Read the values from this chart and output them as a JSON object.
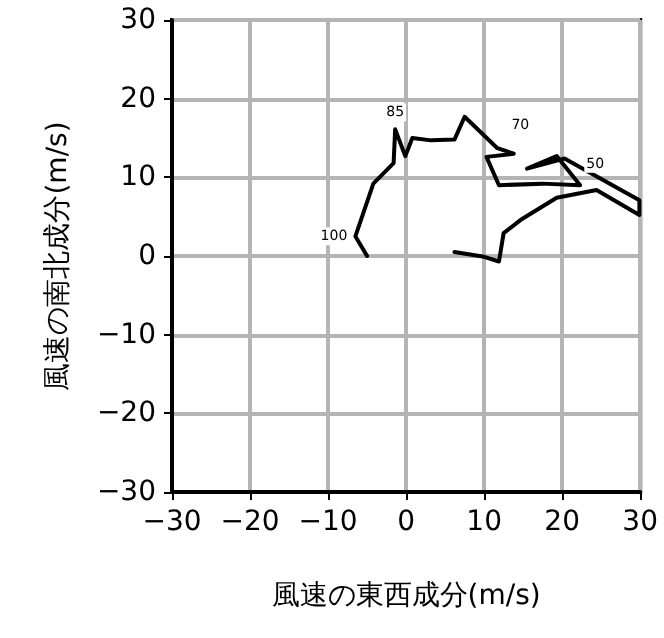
{
  "chart_data": {
    "type": "line",
    "xlabel": "風速の東西成分(m/s)",
    "ylabel": "風速の南北成分(m/s)",
    "series": [
      {
        "color": "#000000",
        "x": [
          -5,
          -6.5,
          -4.2,
          -1.6,
          -1.4,
          -0.1,
          0.8,
          3.2,
          6.2,
          7.5,
          11.7,
          13.8,
          10.3,
          11.9,
          17.5,
          22.3,
          19.3,
          15.5,
          20.3,
          29.9,
          29.9,
          24.4,
          19.3,
          14.7,
          12.5,
          11.9,
          10,
          6.2
        ],
        "values": [
          0,
          2.5,
          9.2,
          11.8,
          16.1,
          12.7,
          15,
          14.7,
          14.8,
          17.7,
          13.7,
          13,
          12.6,
          9,
          9.2,
          9,
          12.7,
          11.1,
          12.4,
          7.1,
          5.2,
          8.4,
          7.4,
          4.6,
          2.9,
          -0.7,
          -0.1,
          0.5
        ]
      }
    ],
    "annotations": [
      {
        "text": "100",
        "x": -6.5,
        "y": 2.5
      },
      {
        "text": "85",
        "x": -1.4,
        "y": 16.1
      },
      {
        "text": "70",
        "x": 11.7,
        "y": 13.7
      },
      {
        "text": "50",
        "x": 21.3,
        "y": 8.8
      }
    ],
    "xlim": [
      -30,
      30
    ],
    "ylim": [
      -30,
      30
    ],
    "xticks": [
      {
        "value": -30,
        "label": "−30"
      },
      {
        "value": -20,
        "label": "−20"
      },
      {
        "value": -10,
        "label": "−10"
      },
      0,
      10,
      20,
      30
    ],
    "yticks": [
      {
        "value": -30,
        "label": "−30"
      },
      {
        "value": -20,
        "label": "−20"
      },
      {
        "value": -10,
        "label": "−10"
      },
      0,
      10,
      20,
      30
    ],
    "grid": true,
    "marker": "none",
    "line_style": "solid"
  }
}
